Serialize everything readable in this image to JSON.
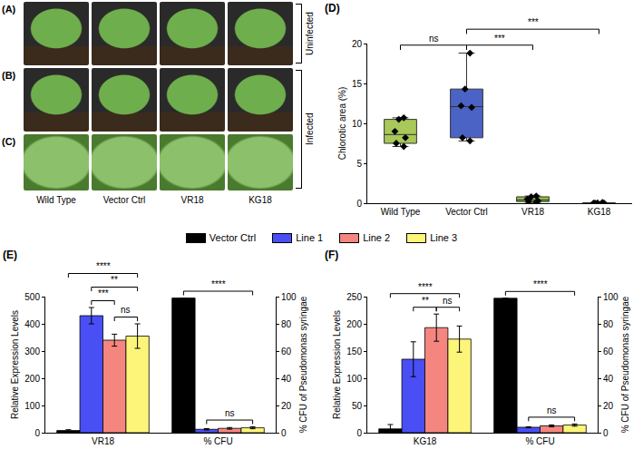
{
  "photo_panels": {
    "rows": [
      {
        "label": "(A)",
        "group": "Uninfected"
      },
      {
        "label": "(B)",
        "group": "Infected"
      },
      {
        "label": "(C)",
        "group": "Infected"
      }
    ],
    "columns": [
      "Wild Type",
      "Vector Ctrl",
      "VR18",
      "KG18"
    ]
  },
  "chart_data": [
    {
      "panel": "(D)",
      "type": "box",
      "categories": [
        "Wild Type",
        "Vector Ctrl",
        "VR18",
        "KG18"
      ],
      "colors": [
        "#a8c85a",
        "#4a63c4",
        "#8fbf3f",
        "#3c5cc0"
      ],
      "points": [
        [
          7.1,
          7.5,
          8.2,
          9.0,
          10.5,
          10.7
        ],
        [
          7.8,
          8.2,
          12.0,
          12.2,
          14.3,
          18.8
        ],
        [
          0.1,
          0.2,
          0.3,
          0.5,
          0.8,
          0.9
        ],
        [
          0.0,
          0.0,
          0.0,
          0.0,
          0.05,
          0.1
        ]
      ],
      "marker": "diamond",
      "ylabel": "Chlorotic area (%)",
      "ylim": [
        0,
        20
      ],
      "yticks": [
        0,
        5,
        10,
        15,
        20
      ],
      "grid": false,
      "annotations": [
        {
          "text": "ns",
          "from": "Wild Type",
          "to": "Vector Ctrl"
        },
        {
          "text": "***",
          "from": "Vector Ctrl",
          "to": "VR18"
        },
        {
          "text": "***",
          "from": "Vector Ctrl",
          "to": "KG18"
        }
      ]
    },
    {
      "panel": "(E)",
      "type": "bar",
      "legend": "top",
      "categories": [
        "VR18",
        "% CFU"
      ],
      "ylabel": "Relative Expression Levels",
      "y2label": "% CFU of Pseudomonas syringae",
      "ylim": [
        0,
        500
      ],
      "yticks": [
        0,
        100,
        200,
        300,
        400,
        500
      ],
      "y2lim": [
        0,
        100
      ],
      "y2ticks": [
        0,
        20,
        40,
        60,
        80,
        100
      ],
      "grid": false,
      "series": [
        {
          "name": "Vector Ctrl",
          "color": "#000000",
          "values": [
            8,
            null
          ],
          "errors": [
            3,
            null
          ]
        },
        {
          "name": "Line 1",
          "color": "#4a4ef5",
          "values": [
            430,
            null
          ],
          "errors": [
            30,
            null
          ]
        },
        {
          "name": "Line 2",
          "color": "#f4867f",
          "values": [
            340,
            null
          ],
          "errors": [
            22,
            null
          ]
        },
        {
          "name": "Line 3",
          "color": "#fdf57a",
          "values": [
            355,
            null
          ],
          "errors": [
            45,
            null
          ]
        },
        {
          "name": "Vector Ctrl",
          "color": "#000000",
          "axis": "y2",
          "values": [
            null,
            99
          ],
          "errors": [
            null,
            0
          ]
        },
        {
          "name": "Line 1",
          "color": "#4a4ef5",
          "axis": "y2",
          "values": [
            null,
            2.5
          ],
          "errors": [
            null,
            0.5
          ]
        },
        {
          "name": "Line 2",
          "color": "#f4867f",
          "axis": "y2",
          "values": [
            null,
            3.2
          ],
          "errors": [
            null,
            0.6
          ]
        },
        {
          "name": "Line 3",
          "color": "#fdf57a",
          "axis": "y2",
          "values": [
            null,
            3.6
          ],
          "errors": [
            null,
            0.7
          ]
        }
      ],
      "annotations": [
        {
          "text": "ns",
          "group": "VR18",
          "from": "Line 2",
          "to": "Line 3"
        },
        {
          "text": "***",
          "group": "VR18",
          "from": "Line 1",
          "to": "Line 2"
        },
        {
          "text": "**",
          "group": "VR18",
          "from": "Line 1",
          "to": "Line 3"
        },
        {
          "text": "****",
          "group": "VR18",
          "from": "Vector Ctrl",
          "to": "Line 3"
        },
        {
          "text": "ns",
          "group": "% CFU",
          "from": "Line 1",
          "to": "Line 3"
        },
        {
          "text": "****",
          "group": "% CFU",
          "from": "Vector Ctrl",
          "to": "Line 3"
        }
      ]
    },
    {
      "panel": "(F)",
      "type": "bar",
      "categories": [
        "KG18",
        "% CFU"
      ],
      "ylabel": "Relative Expression Levels",
      "y2label": "% CFU of Pseudomonas syringae",
      "ylim": [
        0,
        250
      ],
      "yticks": [
        0,
        50,
        100,
        150,
        200,
        250
      ],
      "y2lim": [
        0,
        100
      ],
      "y2ticks": [
        0,
        20,
        40,
        60,
        80,
        100
      ],
      "grid": false,
      "series": [
        {
          "name": "Vector Ctrl",
          "color": "#000000",
          "values": [
            7,
            null
          ],
          "errors": [
            8,
            null
          ]
        },
        {
          "name": "Line 1",
          "color": "#4a4ef5",
          "values": [
            135,
            null
          ],
          "errors": [
            32,
            null
          ]
        },
        {
          "name": "Line 2",
          "color": "#f4867f",
          "values": [
            193,
            null
          ],
          "errors": [
            25,
            null
          ]
        },
        {
          "name": "Line 3",
          "color": "#fdf57a",
          "values": [
            172,
            null
          ],
          "errors": [
            24,
            null
          ]
        },
        {
          "name": "Vector Ctrl",
          "color": "#000000",
          "axis": "y2",
          "values": [
            null,
            98.8
          ],
          "errors": [
            null,
            0
          ]
        },
        {
          "name": "Line 1",
          "color": "#4a4ef5",
          "axis": "y2",
          "values": [
            null,
            4
          ],
          "errors": [
            null,
            0.4
          ]
        },
        {
          "name": "Line 2",
          "color": "#f4867f",
          "axis": "y2",
          "values": [
            null,
            5
          ],
          "errors": [
            null,
            0.7
          ]
        },
        {
          "name": "Line 3",
          "color": "#fdf57a",
          "axis": "y2",
          "values": [
            null,
            5.6
          ],
          "errors": [
            null,
            0.8
          ]
        }
      ],
      "annotations": [
        {
          "text": "ns",
          "group": "KG18",
          "from": "Line 2",
          "to": "Line 3"
        },
        {
          "text": "**",
          "group": "KG18",
          "from": "Line 1",
          "to": "Line 2"
        },
        {
          "text": "****",
          "group": "KG18",
          "from": "Vector Ctrl",
          "to": "Line 3"
        },
        {
          "text": "ns",
          "group": "% CFU",
          "from": "Line 1",
          "to": "Line 3"
        },
        {
          "text": "****",
          "group": "% CFU",
          "from": "Vector Ctrl",
          "to": "Line 3"
        }
      ]
    }
  ]
}
